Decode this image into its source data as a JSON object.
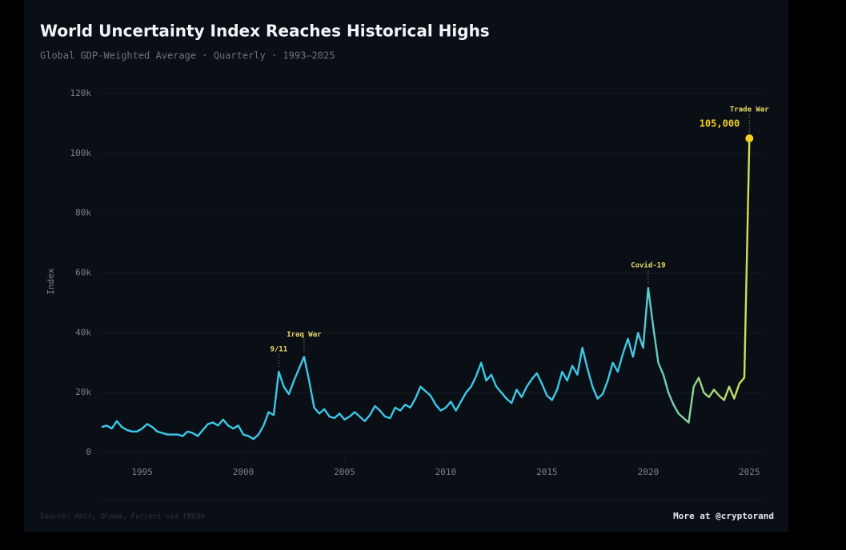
{
  "chart_data": {
    "type": "line",
    "title": "World Uncertainty Index Reaches Historical Highs",
    "subtitle": "Global GDP-Weighted Average · Quarterly · 1993–2025",
    "y_label": "Index",
    "source": "Source: Ahir, Bloom, Furceri via FRED®",
    "credit": "More at @cryptorand",
    "x": [
      1993,
      1993.25,
      1993.5,
      1993.75,
      1994,
      1994.25,
      1994.5,
      1994.75,
      1995,
      1995.25,
      1995.5,
      1995.75,
      1996,
      1996.25,
      1996.5,
      1996.75,
      1997,
      1997.25,
      1997.5,
      1997.75,
      1998,
      1998.25,
      1998.5,
      1998.75,
      1999,
      1999.25,
      1999.5,
      1999.75,
      2000,
      2000.25,
      2000.5,
      2000.75,
      2001,
      2001.25,
      2001.5,
      2001.75,
      2002,
      2002.25,
      2002.5,
      2002.75,
      2003,
      2003.25,
      2003.5,
      2003.75,
      2004,
      2004.25,
      2004.5,
      2004.75,
      2005,
      2005.25,
      2005.5,
      2005.75,
      2006,
      2006.25,
      2006.5,
      2006.75,
      2007,
      2007.25,
      2007.5,
      2007.75,
      2008,
      2008.25,
      2008.5,
      2008.75,
      2009,
      2009.25,
      2009.5,
      2009.75,
      2010,
      2010.25,
      2010.5,
      2010.75,
      2011,
      2011.25,
      2011.5,
      2011.75,
      2012,
      2012.25,
      2012.5,
      2012.75,
      2013,
      2013.25,
      2013.5,
      2013.75,
      2014,
      2014.25,
      2014.5,
      2014.75,
      2015,
      2015.25,
      2015.5,
      2015.75,
      2016,
      2016.25,
      2016.5,
      2016.75,
      2017,
      2017.25,
      2017.5,
      2017.75,
      2018,
      2018.25,
      2018.5,
      2018.75,
      2019,
      2019.25,
      2019.5,
      2019.75,
      2020,
      2020.25,
      2020.5,
      2020.75,
      2021,
      2021.25,
      2021.5,
      2021.75,
      2022,
      2022.25,
      2022.5,
      2022.75,
      2023,
      2023.25,
      2023.5,
      2023.75,
      2024,
      2024.25,
      2024.5,
      2024.75,
      2025
    ],
    "series": [
      {
        "name": "World Uncertainty Index",
        "color": "#3cc8e8",
        "gradient_to": "#e6e43a",
        "values": [
          8500,
          9000,
          8000,
          10500,
          8500,
          7500,
          7000,
          7000,
          8000,
          9500,
          8500,
          7000,
          6500,
          6000,
          6000,
          6000,
          5500,
          7000,
          6500,
          5500,
          7500,
          9500,
          10000,
          9000,
          11000,
          9000,
          8000,
          9000,
          6000,
          5500,
          4500,
          6000,
          9000,
          13500,
          12500,
          27000,
          22000,
          19500,
          24000,
          28000,
          32000,
          24000,
          15000,
          13000,
          14500,
          12000,
          11500,
          13000,
          11000,
          12000,
          13500,
          12000,
          10500,
          12500,
          15500,
          14000,
          12000,
          11500,
          15000,
          14000,
          16000,
          15000,
          18000,
          22000,
          20500,
          19000,
          16000,
          14000,
          15000,
          17000,
          14000,
          17000,
          20000,
          22000,
          25500,
          30000,
          24000,
          26000,
          22000,
          20000,
          18000,
          16500,
          21000,
          18500,
          22000,
          24500,
          26500,
          23000,
          19000,
          17500,
          21000,
          27000,
          24000,
          29000,
          26000,
          35000,
          28000,
          22000,
          18000,
          19500,
          24000,
          30000,
          27000,
          33000,
          38000,
          32000,
          40000,
          35000,
          55000,
          42000,
          30000,
          26000,
          20000,
          16000,
          13000,
          11500,
          10000,
          22000,
          25000,
          20000,
          18500,
          21000,
          19000,
          17500,
          22000,
          18000,
          23000,
          25000,
          105000
        ]
      }
    ],
    "annotations": [
      {
        "label": "9/11",
        "x": 2001.75,
        "y": 27000
      },
      {
        "label": "Iraq War",
        "x": 2003,
        "y": 32000
      },
      {
        "label": "Covid-19",
        "x": 2020,
        "y": 55000
      },
      {
        "label": "Trade War",
        "x": 2025,
        "y": 105000,
        "value_label": "105,000",
        "color": "#f0d020"
      }
    ],
    "xlim": [
      1993,
      2025.7
    ],
    "xticks": [
      1995,
      2000,
      2005,
      2010,
      2015,
      2020,
      2025
    ],
    "ylim": [
      0,
      120000
    ],
    "yticks": [
      0,
      {
        "value": 20000,
        "label": "20k"
      },
      {
        "value": 40000,
        "label": "40k"
      },
      {
        "value": 60000,
        "label": "60k"
      },
      {
        "value": 80000,
        "label": "80k"
      },
      {
        "value": 100000,
        "label": "100k"
      },
      {
        "value": 120000,
        "label": "120k"
      }
    ],
    "grid": true
  }
}
